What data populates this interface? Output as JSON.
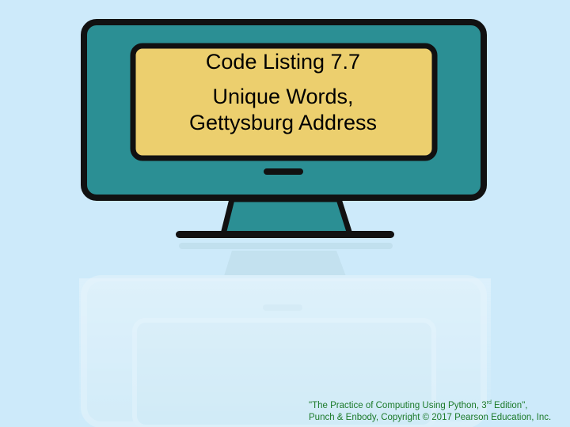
{
  "slide": {
    "title_line1": "Code Listing 7.7",
    "title_line2": "Unique Words,",
    "title_line3": "Gettysburg Address"
  },
  "footer": {
    "line1_pre": "\"The Practice of Computing Using Python, 3",
    "line1_sup": "rd",
    "line1_post": " Edition\",",
    "line2": "Punch & Enbody, Copyright © 2017 Pearson Education, Inc."
  },
  "colors": {
    "background": "#cdeafa",
    "monitor_frame": "#2b8f94",
    "monitor_outline": "#111111",
    "screen": "#eccf6e",
    "footer_text": "#1c7a2a"
  },
  "icons": {
    "monitor": "computer-monitor-icon"
  }
}
